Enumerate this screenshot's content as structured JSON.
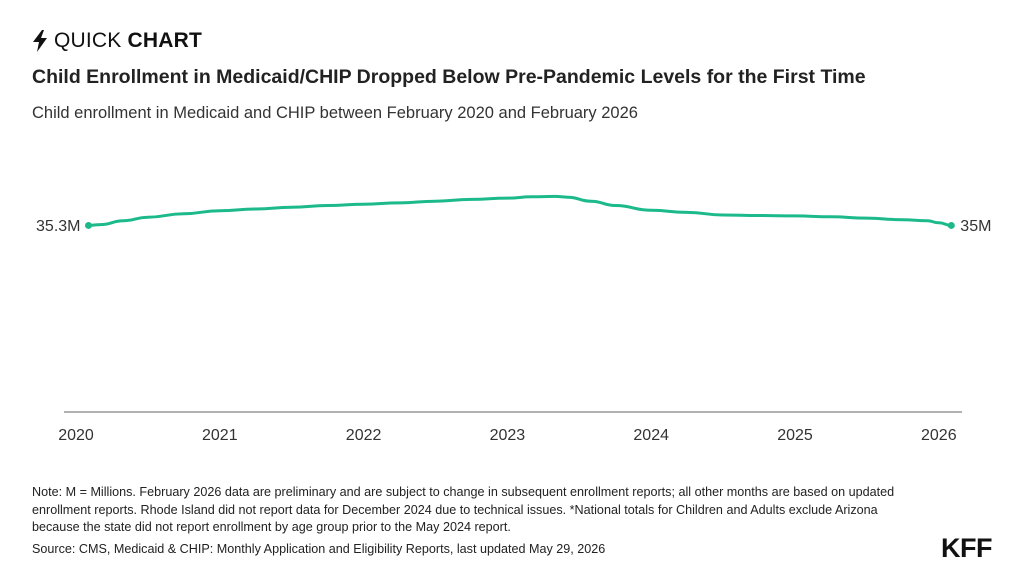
{
  "brand": {
    "prefix": "QUICK",
    "emphasis": "CHART",
    "icon": "lightning-bolt-icon"
  },
  "chart_data": {
    "type": "line",
    "title": "Child Enrollment in Medicaid/CHIP Dropped Below Pre-Pandemic Levels for the First Time",
    "subtitle": "Child enrollment in Medicaid and CHIP between February 2020 and February 2026",
    "x_ticks": [
      "2020",
      "2021",
      "2022",
      "2023",
      "2024",
      "2025",
      "2026"
    ],
    "x_range": [
      2020,
      2026.2
    ],
    "y_range": [
      31.0,
      37.5
    ],
    "grid": false,
    "line_color": "#1cb98b",
    "series": [
      {
        "points": [
          [
            2020.087,
            35.3
          ],
          [
            2020.17,
            35.32
          ],
          [
            2020.33,
            35.41
          ],
          [
            2020.5,
            35.49
          ],
          [
            2020.75,
            35.57
          ],
          [
            2021.0,
            35.64
          ],
          [
            2021.25,
            35.68
          ],
          [
            2021.5,
            35.72
          ],
          [
            2021.75,
            35.76
          ],
          [
            2022.0,
            35.79
          ],
          [
            2022.25,
            35.82
          ],
          [
            2022.5,
            35.86
          ],
          [
            2022.75,
            35.9
          ],
          [
            2023.0,
            35.93
          ],
          [
            2023.17,
            35.96
          ],
          [
            2023.33,
            35.97
          ],
          [
            2023.42,
            35.95
          ],
          [
            2023.58,
            35.86
          ],
          [
            2023.75,
            35.76
          ],
          [
            2024.0,
            35.65
          ],
          [
            2024.25,
            35.6
          ],
          [
            2024.5,
            35.54
          ],
          [
            2024.75,
            35.53
          ],
          [
            2025.0,
            35.52
          ],
          [
            2025.25,
            35.5
          ],
          [
            2025.5,
            35.47
          ],
          [
            2025.75,
            35.43
          ],
          [
            2025.92,
            35.41
          ],
          [
            2026.0,
            35.36
          ],
          [
            2026.087,
            35.3
          ]
        ]
      }
    ],
    "end_labels": {
      "start": "35.3M",
      "end": "35M"
    }
  },
  "footer": {
    "note": "Note: M = Millions. February 2026 data are preliminary and are subject to change in subsequent enrollment reports; all other months are based on updated enrollment reports. Rhode Island did not report data for December 2024 due to technical issues. *National totals for Children and Adults exclude Arizona because the state did not report enrollment by age group prior to the May 2024 report.",
    "source": "Source: CMS, Medicaid & CHIP: Monthly Application and Eligibility Reports, last updated May 29, 2026",
    "logo": "KFF"
  }
}
